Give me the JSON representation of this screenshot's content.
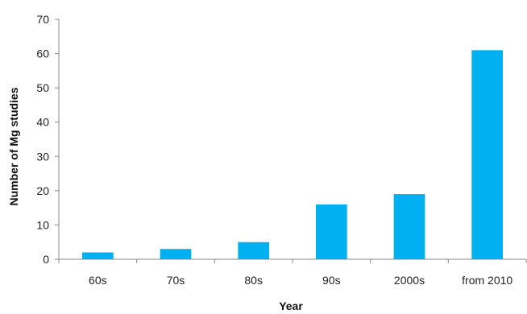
{
  "chart_data": {
    "type": "bar",
    "categories": [
      "60s",
      "70s",
      "80s",
      "90s",
      "2000s",
      "from 2010"
    ],
    "values": [
      2,
      3,
      5,
      16,
      19,
      61
    ],
    "title": "",
    "xlabel": "Year",
    "ylabel": "Number of Mg studies",
    "ylim": [
      0,
      70
    ],
    "yticks": [
      0,
      10,
      20,
      30,
      40,
      50,
      60,
      70
    ],
    "grid": false,
    "legend": "none",
    "bar_color": "#00B0F0",
    "axis_color": "#888888"
  }
}
